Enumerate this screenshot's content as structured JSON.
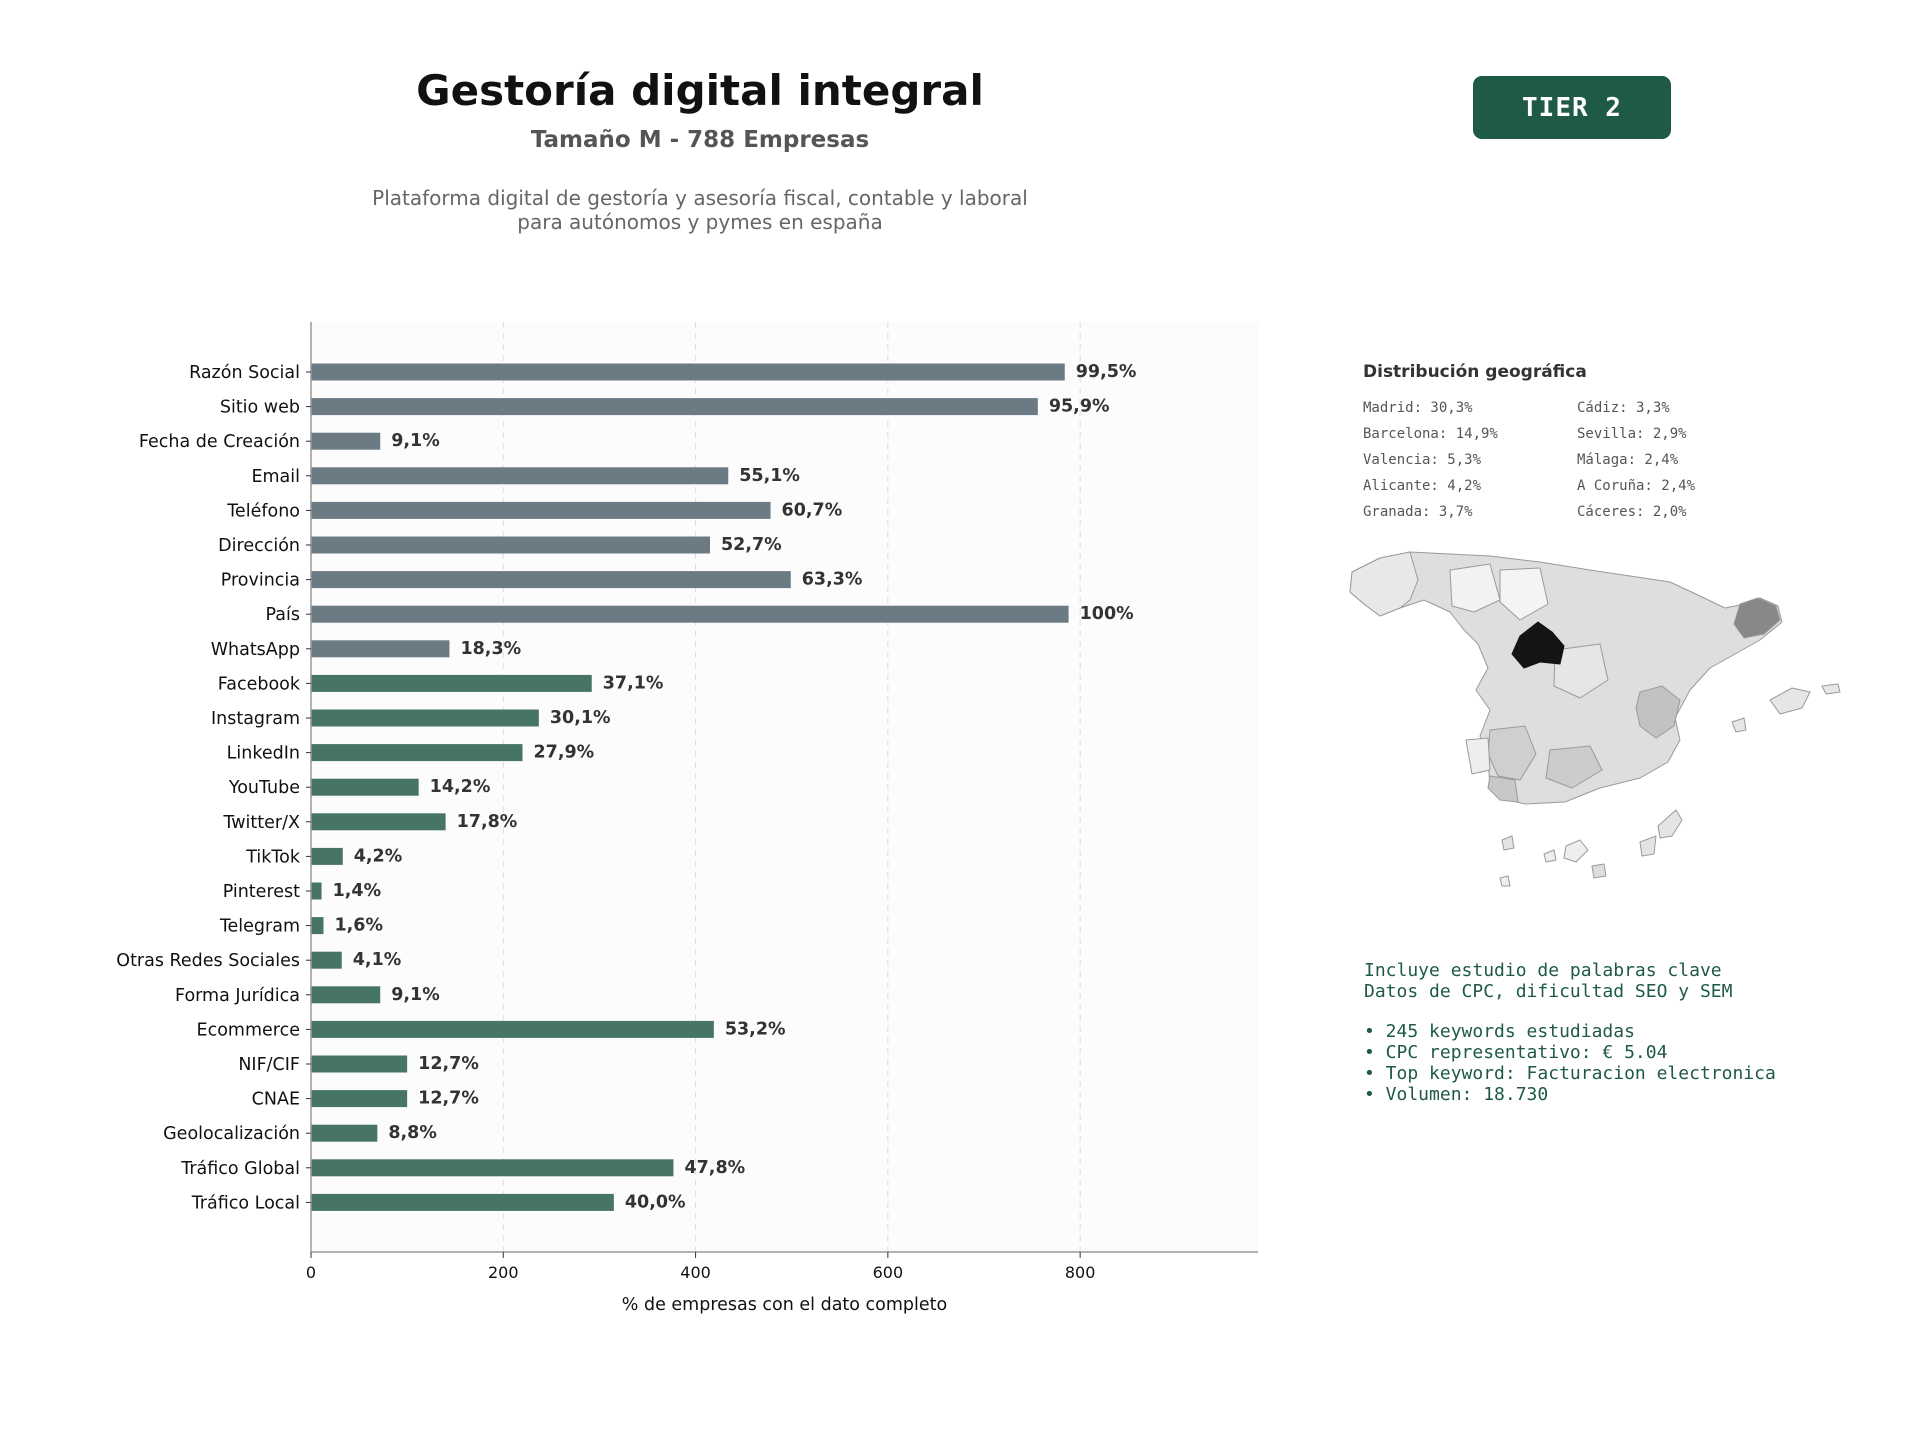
{
  "header": {
    "title": "Gestoría digital integral",
    "subtitle": "Tamaño M - 788 Empresas",
    "description_line1": "Plataforma digital de gestoría y asesoría fiscal, contable y laboral",
    "description_line2": "para autónomos y pymes en españa",
    "tier_label": "TIER 2"
  },
  "chart_data": {
    "type": "bar",
    "orientation": "horizontal",
    "xlabel": "% de empresas con el dato completo",
    "ylabel": "",
    "xlim": [
      0,
      985
    ],
    "xticks": [
      0,
      200,
      400,
      600,
      800
    ],
    "grid": "vertical dashed",
    "categories": [
      "Razón Social",
      "Sitio web",
      "Fecha de Creación",
      "Email",
      "Teléfono",
      "Dirección",
      "Provincia",
      "País",
      "WhatsApp",
      "Facebook",
      "Instagram",
      "LinkedIn",
      "YouTube",
      "Twitter/X",
      "TikTok",
      "Pinterest",
      "Telegram",
      "Otras Redes Sociales",
      "Forma Jurídica",
      "Ecommerce",
      "NIF/CIF",
      "CNAE",
      "Geolocalización",
      "Tráfico Global",
      "Tráfico Local"
    ],
    "values": [
      784,
      756,
      72,
      434,
      478,
      415,
      499,
      788,
      144,
      292,
      237,
      220,
      112,
      140,
      33,
      11,
      13,
      32,
      72,
      419,
      100,
      100,
      69,
      377,
      315
    ],
    "labels": [
      "99,5%",
      "95,9%",
      "9,1%",
      "55,1%",
      "60,7%",
      "52,7%",
      "63,3%",
      "100%",
      "18,3%",
      "37,1%",
      "30,1%",
      "27,9%",
      "14,2%",
      "17,8%",
      "4,2%",
      "1,4%",
      "1,6%",
      "4,1%",
      "9,1%",
      "53,2%",
      "12,7%",
      "12,7%",
      "8,8%",
      "47,8%",
      "40,0%"
    ],
    "colors": [
      "#6c7a84",
      "#6c7a84",
      "#6c7a84",
      "#6c7a84",
      "#6c7a84",
      "#6c7a84",
      "#6c7a84",
      "#6c7a84",
      "#6c7a84",
      "#477565",
      "#477565",
      "#477565",
      "#477565",
      "#477565",
      "#477565",
      "#477565",
      "#477565",
      "#477565",
      "#477565",
      "#477565",
      "#477565",
      "#477565",
      "#477565",
      "#477565",
      "#477565"
    ]
  },
  "geo": {
    "title": "Distribución geográfica",
    "items": [
      "Madrid: 30,3%",
      "Cádiz: 3,3%",
      "Barcelona: 14,9%",
      "Sevilla: 2,9%",
      "Valencia: 5,3%",
      "Málaga: 2,4%",
      "Alicante: 4,2%",
      "A Coruña: 2,4%",
      "Granada: 3,7%",
      "Cáceres: 2,0%"
    ]
  },
  "info": {
    "line1": "Incluye estudio de palabras clave",
    "line2": "Datos de CPC, dificultad SEO y SEM",
    "bullet1": "• 245 keywords estudiadas",
    "bullet2": "• CPC representativo: € 5.04",
    "bullet3": "• Top keyword: Facturacion electronica",
    "bullet4": "• Volumen: 18.730"
  },
  "colors": {
    "accent": "#1e5a45",
    "bar_contact": "#6c7a84",
    "bar_social": "#477565"
  }
}
